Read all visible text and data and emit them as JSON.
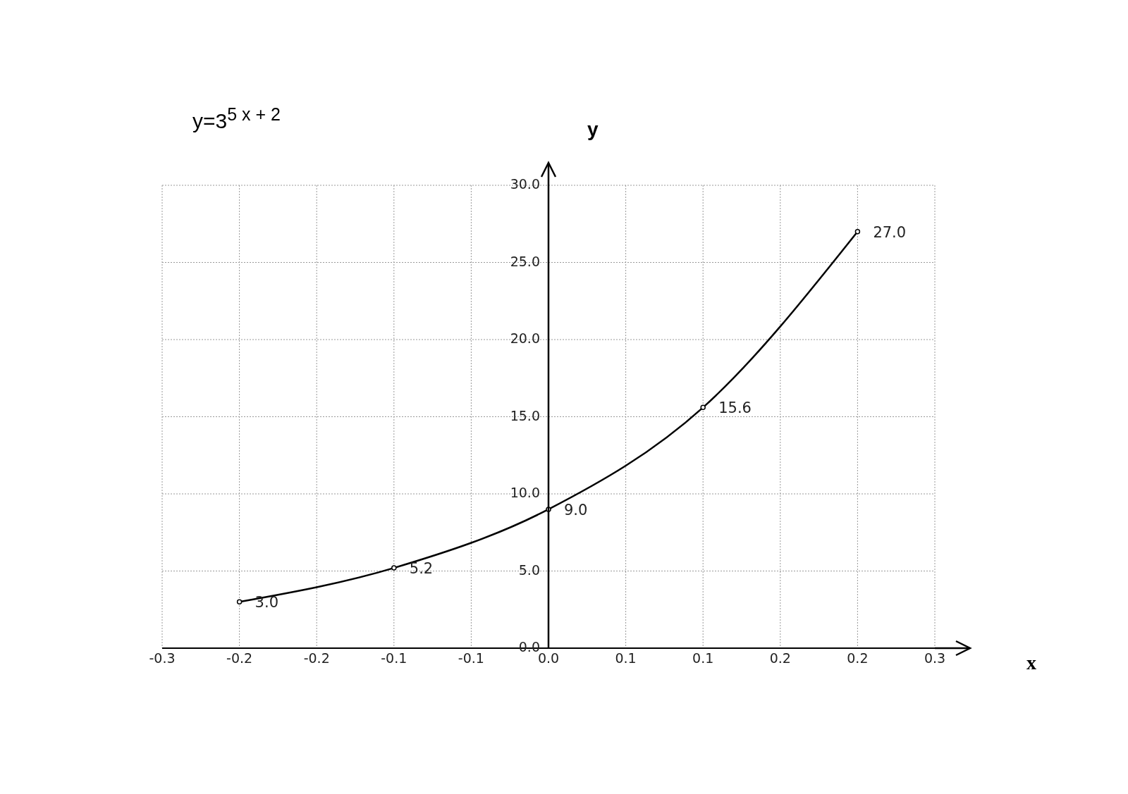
{
  "chart_data": {
    "type": "line",
    "title": "y=3$^{5 x + 2}$",
    "xlabel": "x",
    "ylabel": "y",
    "x": [
      -0.2,
      -0.1,
      0,
      0.1,
      0.2
    ],
    "series": [
      {
        "color": "#000000",
        "values": [
          3,
          5.2,
          9,
          15.6,
          27
        ],
        "value_labels": [
          "3.0",
          "5.2",
          "9.0",
          "15.6",
          "27.0"
        ]
      }
    ],
    "xlim": [
      -0.25,
      0.25
    ],
    "xticks": [
      {
        "value": -0.25,
        "label": "-0.3"
      },
      {
        "value": -0.2,
        "label": "-0.2"
      },
      {
        "value": -0.15,
        "label": "-0.2"
      },
      {
        "value": -0.1,
        "label": "-0.1"
      },
      {
        "value": -0.05,
        "label": "-0.1"
      },
      {
        "value": 0,
        "label": "0.0"
      },
      {
        "value": 0.05,
        "label": "0.1"
      },
      {
        "value": 0.1,
        "label": "0.1"
      },
      {
        "value": 0.15,
        "label": "0.2"
      },
      {
        "value": 0.2,
        "label": "0.2"
      },
      {
        "value": 0.25,
        "label": "0.3"
      }
    ],
    "ylim": [
      0,
      30
    ],
    "yticks": [
      {
        "value": 0,
        "label": "0.0"
      },
      {
        "value": 5,
        "label": "5.0"
      },
      {
        "value": 10,
        "label": "10.0"
      },
      {
        "value": 15,
        "label": "15.0"
      },
      {
        "value": 20,
        "label": "20.0"
      },
      {
        "value": 25,
        "label": "25.0"
      },
      {
        "value": 30,
        "label": "30.0"
      }
    ],
    "grid": true,
    "marker": "circle",
    "line_style": "solid",
    "legend": false
  }
}
